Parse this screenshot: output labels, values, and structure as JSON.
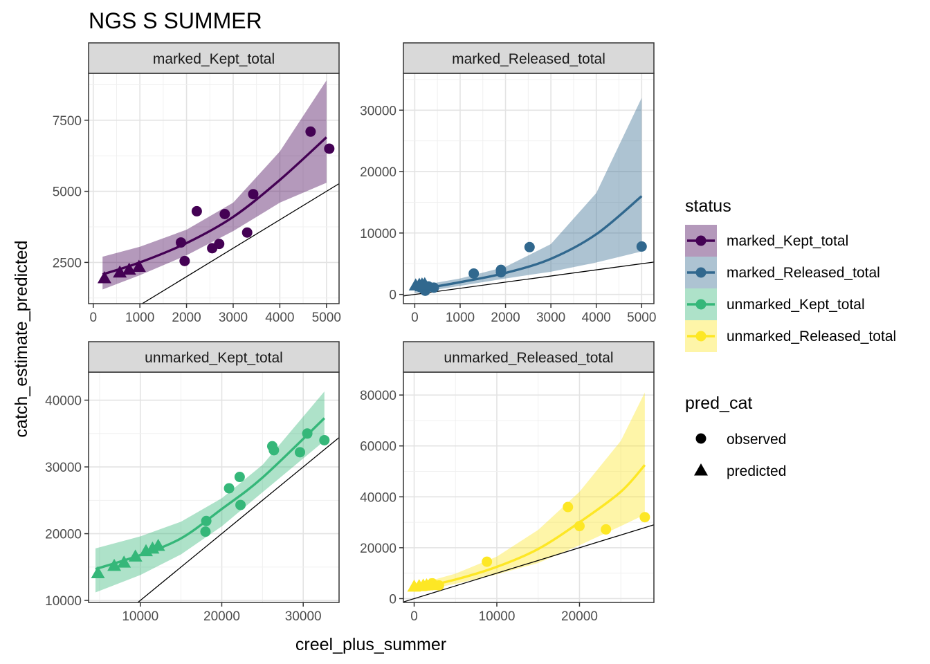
{
  "chart_data": {
    "type": "scatter",
    "title": "NGS S SUMMER",
    "xlabel": "creel_plus_summer",
    "ylabel": "catch_estimate_predicted",
    "grid": true,
    "legend_placement": "right",
    "legends": {
      "status": {
        "title": "status",
        "entries": [
          {
            "label": "marked_Kept_total",
            "color": "#440154"
          },
          {
            "label": "marked_Released_total",
            "color": "#31688E"
          },
          {
            "label": "unmarked_Kept_total",
            "color": "#35B779"
          },
          {
            "label": "unmarked_Released_total",
            "color": "#FDE725"
          }
        ]
      },
      "pred_cat": {
        "title": "pred_cat",
        "entries": [
          {
            "label": "observed",
            "shape": "circle"
          },
          {
            "label": "predicted",
            "shape": "triangle"
          }
        ]
      }
    },
    "panels": [
      {
        "strip": "marked_Kept_total",
        "color": "#440154",
        "xlim": [
          -100,
          5270
        ],
        "ylim": [
          1050,
          9150
        ],
        "xticks": [
          0,
          1000,
          2000,
          3000,
          4000,
          5000
        ],
        "yticks": [
          2500,
          5000,
          7500
        ],
        "observed": [
          [
            1880,
            3200
          ],
          [
            1960,
            2550
          ],
          [
            2220,
            4300
          ],
          [
            2550,
            3000
          ],
          [
            2700,
            3150
          ],
          [
            2820,
            4200
          ],
          [
            3300,
            3550
          ],
          [
            3430,
            4900
          ],
          [
            4660,
            7100
          ],
          [
            5060,
            6500
          ]
        ],
        "predicted": [
          [
            240,
            1950
          ],
          [
            570,
            2150
          ],
          [
            770,
            2250
          ],
          [
            980,
            2350
          ]
        ],
        "fit": [
          [
            200,
            2080
          ],
          [
            1000,
            2500
          ],
          [
            2000,
            3180
          ],
          [
            3000,
            4100
          ],
          [
            4000,
            5400
          ],
          [
            5000,
            6900
          ]
        ],
        "ribbon_upper": [
          [
            200,
            2700
          ],
          [
            1000,
            3050
          ],
          [
            2000,
            3650
          ],
          [
            3000,
            4600
          ],
          [
            4000,
            6400
          ],
          [
            5000,
            8900
          ]
        ],
        "ribbon_lower": [
          [
            200,
            1550
          ],
          [
            1000,
            2050
          ],
          [
            2000,
            2750
          ],
          [
            3000,
            3600
          ],
          [
            4000,
            4600
          ],
          [
            5000,
            5300
          ]
        ],
        "ref_line": [
          [
            1000,
            1000
          ],
          [
            5270,
            5270
          ]
        ]
      },
      {
        "strip": "marked_Released_total",
        "color": "#31688E",
        "xlim": [
          -250,
          5270
        ],
        "ylim": [
          -1500,
          36000
        ],
        "xticks": [
          0,
          1000,
          2000,
          3000,
          4000,
          5000
        ],
        "yticks": [
          0,
          10000,
          20000,
          30000
        ],
        "observed": [
          [
            120,
            1200
          ],
          [
            190,
            900
          ],
          [
            230,
            600
          ],
          [
            300,
            1300
          ],
          [
            420,
            1100
          ],
          [
            1300,
            3400
          ],
          [
            1900,
            3600
          ],
          [
            1900,
            4000
          ],
          [
            2530,
            7700
          ],
          [
            5000,
            7800
          ]
        ],
        "predicted": [
          [
            20,
            1500
          ],
          [
            100,
            1600
          ],
          [
            160,
            1650
          ],
          [
            220,
            1700
          ]
        ],
        "fit": [
          [
            0,
            700
          ],
          [
            1000,
            2000
          ],
          [
            2000,
            3500
          ],
          [
            3000,
            5800
          ],
          [
            4000,
            9800
          ],
          [
            5000,
            16000
          ]
        ],
        "ribbon_upper": [
          [
            0,
            1300
          ],
          [
            1000,
            2600
          ],
          [
            2000,
            4500
          ],
          [
            3000,
            8200
          ],
          [
            4000,
            16500
          ],
          [
            5000,
            32000
          ]
        ],
        "ribbon_lower": [
          [
            0,
            200
          ],
          [
            1000,
            1400
          ],
          [
            2000,
            2600
          ],
          [
            3000,
            3700
          ],
          [
            4000,
            5200
          ],
          [
            5000,
            7000
          ]
        ],
        "ref_line": [
          [
            -250,
            -250
          ],
          [
            5270,
            5270
          ]
        ]
      },
      {
        "strip": "unmarked_Kept_total",
        "color": "#35B779",
        "xlim": [
          3650,
          34400
        ],
        "ylim": [
          9700,
          44200
        ],
        "xticks": [
          10000,
          20000,
          30000
        ],
        "yticks": [
          10000,
          20000,
          30000,
          40000
        ],
        "observed": [
          [
            18000,
            20300
          ],
          [
            18100,
            21900
          ],
          [
            20900,
            26800
          ],
          [
            22200,
            28500
          ],
          [
            22300,
            24300
          ],
          [
            26200,
            33100
          ],
          [
            26400,
            32500
          ],
          [
            29600,
            32200
          ],
          [
            30500,
            35000
          ],
          [
            32600,
            34000
          ]
        ],
        "predicted": [
          [
            4800,
            14100
          ],
          [
            6800,
            15200
          ],
          [
            8000,
            15700
          ],
          [
            9400,
            16600
          ],
          [
            10700,
            17400
          ],
          [
            11500,
            17800
          ],
          [
            12200,
            18200
          ]
        ],
        "fit": [
          [
            4500,
            14700
          ],
          [
            10000,
            16800
          ],
          [
            15000,
            19300
          ],
          [
            20000,
            23700
          ],
          [
            25000,
            28400
          ],
          [
            32600,
            37300
          ]
        ],
        "ribbon_upper": [
          [
            4500,
            17800
          ],
          [
            10000,
            19600
          ],
          [
            15000,
            21800
          ],
          [
            20000,
            25300
          ],
          [
            25000,
            30300
          ],
          [
            32600,
            41300
          ]
        ],
        "ribbon_lower": [
          [
            4500,
            11200
          ],
          [
            10000,
            13800
          ],
          [
            15000,
            16900
          ],
          [
            20000,
            21100
          ],
          [
            25000,
            26200
          ],
          [
            32600,
            33900
          ]
        ],
        "ref_line": [
          [
            9700,
            9700
          ],
          [
            34400,
            34400
          ]
        ]
      },
      {
        "strip": "unmarked_Released_total",
        "color": "#FDE725",
        "xlim": [
          -1300,
          29000
        ],
        "ylim": [
          -1500,
          89000
        ],
        "xticks": [
          0,
          10000,
          20000
        ],
        "yticks": [
          0,
          20000,
          40000,
          60000,
          80000
        ],
        "observed": [
          [
            1400,
            5000
          ],
          [
            2000,
            5500
          ],
          [
            2200,
            6000
          ],
          [
            3000,
            5200
          ],
          [
            8800,
            14500
          ],
          [
            18600,
            36000
          ],
          [
            20000,
            28500
          ],
          [
            23200,
            27200
          ],
          [
            27900,
            32000
          ]
        ],
        "predicted": [
          [
            0,
            4800
          ],
          [
            600,
            5000
          ],
          [
            1100,
            5200
          ],
          [
            1500,
            5300
          ],
          [
            1900,
            5400
          ]
        ],
        "fit": [
          [
            0,
            3800
          ],
          [
            5000,
            7500
          ],
          [
            10000,
            12500
          ],
          [
            15000,
            19500
          ],
          [
            20000,
            30000
          ],
          [
            25000,
            42000
          ],
          [
            27900,
            52500
          ]
        ],
        "ribbon_upper": [
          [
            0,
            5300
          ],
          [
            5000,
            9800
          ],
          [
            10000,
            16500
          ],
          [
            15000,
            27000
          ],
          [
            20000,
            42000
          ],
          [
            25000,
            62000
          ],
          [
            27900,
            81000
          ]
        ],
        "ribbon_lower": [
          [
            0,
            2600
          ],
          [
            5000,
            5800
          ],
          [
            10000,
            9500
          ],
          [
            15000,
            14000
          ],
          [
            20000,
            21000
          ],
          [
            25000,
            28500
          ],
          [
            27900,
            33000
          ]
        ],
        "ref_line": [
          [
            -1300,
            -1300
          ],
          [
            29000,
            29000
          ]
        ]
      }
    ]
  }
}
